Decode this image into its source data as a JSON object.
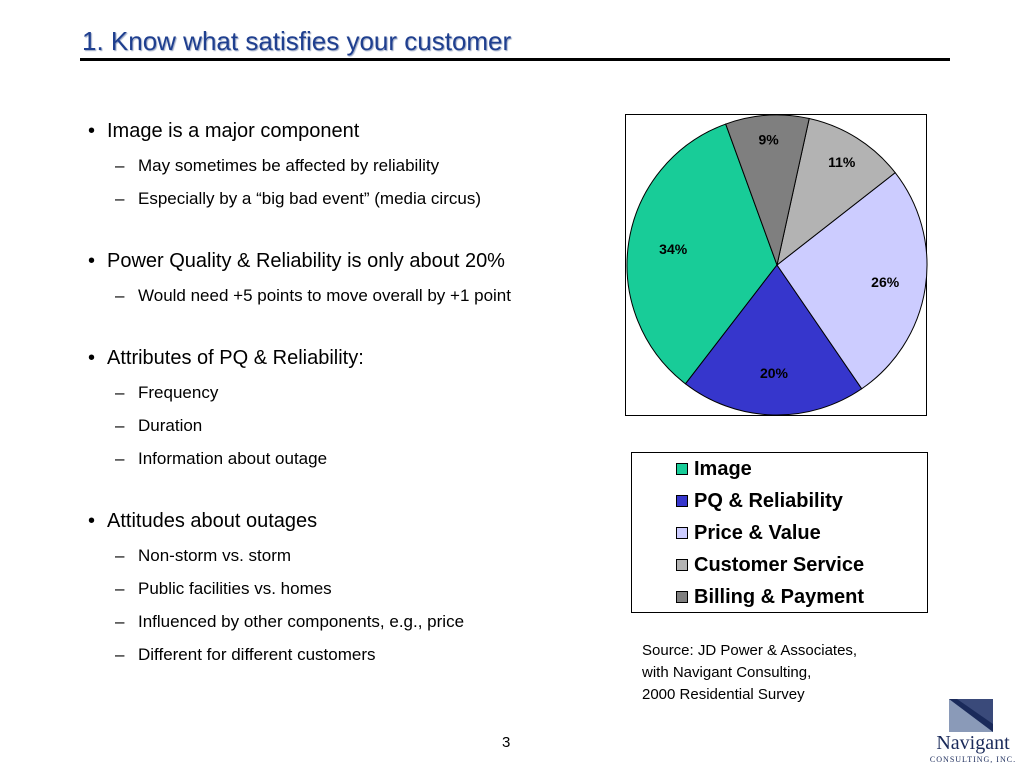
{
  "slide": {
    "title": "1. Know what satisfies your customer",
    "page_number": "3"
  },
  "bullets": [
    {
      "text": "Image is a major component",
      "subs": [
        "May sometimes be affected by reliability",
        "Especially by a “big bad event” (media circus)"
      ]
    },
    {
      "text": "Power Quality & Reliability is only about 20%",
      "subs": [
        "Would need +5 points to move overall by +1 point"
      ]
    },
    {
      "text": "Attributes of PQ & Reliability:",
      "subs": [
        "Frequency",
        "Duration",
        "Information about outage"
      ]
    },
    {
      "text": "Attitudes about outages",
      "subs": [
        "Non-storm vs. storm",
        "Public facilities vs. homes",
        "Influenced by other components, e.g., price",
        "Different for different customers"
      ]
    }
  ],
  "chart_data": {
    "type": "pie",
    "title": "",
    "slices": [
      {
        "label": "Image",
        "value": 34,
        "display": "34%",
        "color": "#18cc98"
      },
      {
        "label": "PQ & Reliability",
        "value": 20,
        "display": "20%",
        "color": "#3636cc"
      },
      {
        "label": "Price & Value",
        "value": 26,
        "display": "26%",
        "color": "#ccccff"
      },
      {
        "label": "Customer Service",
        "value": 11,
        "display": "11%",
        "color": "#b3b3b3"
      },
      {
        "label": "Billing & Payment",
        "value": 9,
        "display": "9%",
        "color": "#7f7f7f"
      }
    ],
    "legend": {
      "placement": "below"
    }
  },
  "source": {
    "text": "Source: JD Power & Associates,\nwith Navigant Consulting,\n2000 Residential Survey"
  },
  "logo": {
    "name": "Navigant",
    "tagline": "CONSULTING, INC.",
    "colors": {
      "dark": "#1a2a5a",
      "light": "#8a9ab8"
    }
  }
}
